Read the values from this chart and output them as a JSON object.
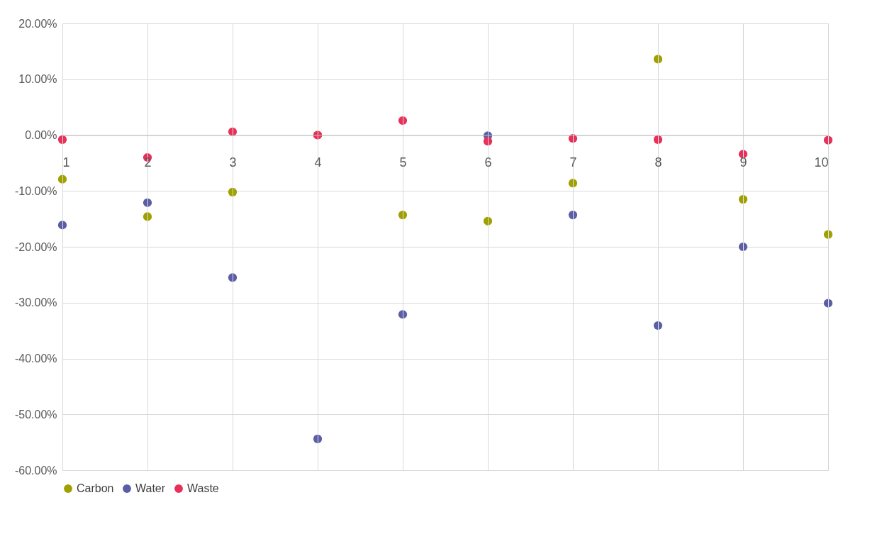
{
  "chart_data": {
    "type": "scatter",
    "x": [
      1,
      2,
      3,
      4,
      5,
      6,
      7,
      8,
      9,
      10
    ],
    "xlim": [
      1,
      10
    ],
    "xticks": [
      1,
      2,
      3,
      4,
      5,
      6,
      7,
      8,
      9,
      10
    ],
    "ylim": [
      -60,
      20
    ],
    "yticks": [
      {
        "value": 20,
        "label": "20.00%"
      },
      {
        "value": 10,
        "label": "10.00%"
      },
      {
        "value": 0,
        "label": "0.00%"
      },
      {
        "value": -10,
        "label": "-10.00%"
      },
      {
        "value": -20,
        "label": "-20.00%"
      },
      {
        "value": -30,
        "label": "-30.00%"
      },
      {
        "value": -40,
        "label": "-40.00%"
      },
      {
        "value": -50,
        "label": "-50.00%"
      },
      {
        "value": -60,
        "label": "-60.00%"
      }
    ],
    "series": [
      {
        "name": "Carbon",
        "color": "#a0a000",
        "values": [
          -7.9,
          -14.6,
          -10.2,
          0.0,
          -14.3,
          -15.4,
          -8.6,
          13.6,
          -11.5,
          -17.8
        ]
      },
      {
        "name": "Water",
        "color": "#5b5ea6",
        "values": [
          -16.1,
          -12.1,
          -25.5,
          -54.4,
          -32.1,
          -0.1,
          -14.3,
          -34.1,
          -20.0,
          -30.1
        ]
      },
      {
        "name": "Waste",
        "color": "#e8305a",
        "values": [
          -0.8,
          -4.0,
          0.6,
          0.0,
          2.6,
          -1.1,
          -0.6,
          -0.8,
          -3.4,
          -0.9
        ]
      }
    ],
    "marker": "circle",
    "grid": true,
    "legend": "bottom"
  }
}
